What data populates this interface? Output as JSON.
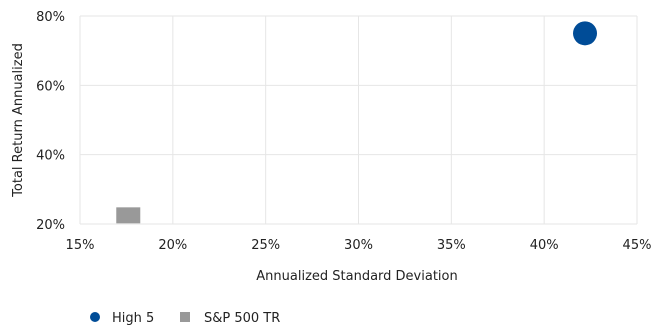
{
  "chart_data": {
    "type": "scatter",
    "title": "",
    "xlabel": "Annualized Standard Deviation",
    "ylabel": "Total Return Annualized",
    "xlim": [
      15,
      45
    ],
    "ylim": [
      20,
      80
    ],
    "x_ticks": [
      15,
      20,
      25,
      30,
      35,
      40,
      45
    ],
    "y_ticks": [
      20,
      40,
      60,
      80
    ],
    "x_tick_labels": [
      "15%",
      "20%",
      "25%",
      "30%",
      "35%",
      "40%",
      "45%"
    ],
    "y_tick_labels": [
      "20%",
      "40%",
      "60%",
      "80%"
    ],
    "grid": true,
    "legend_position": "bottom-left",
    "series": [
      {
        "name": "High 5",
        "marker": "circle",
        "color": "#004c97",
        "points": [
          {
            "x": 42.2,
            "y": 75
          }
        ]
      },
      {
        "name": "S&P 500 TR",
        "marker": "square",
        "color": "#999999",
        "points": [
          {
            "x": 17.6,
            "y": 22.5
          }
        ]
      }
    ]
  }
}
